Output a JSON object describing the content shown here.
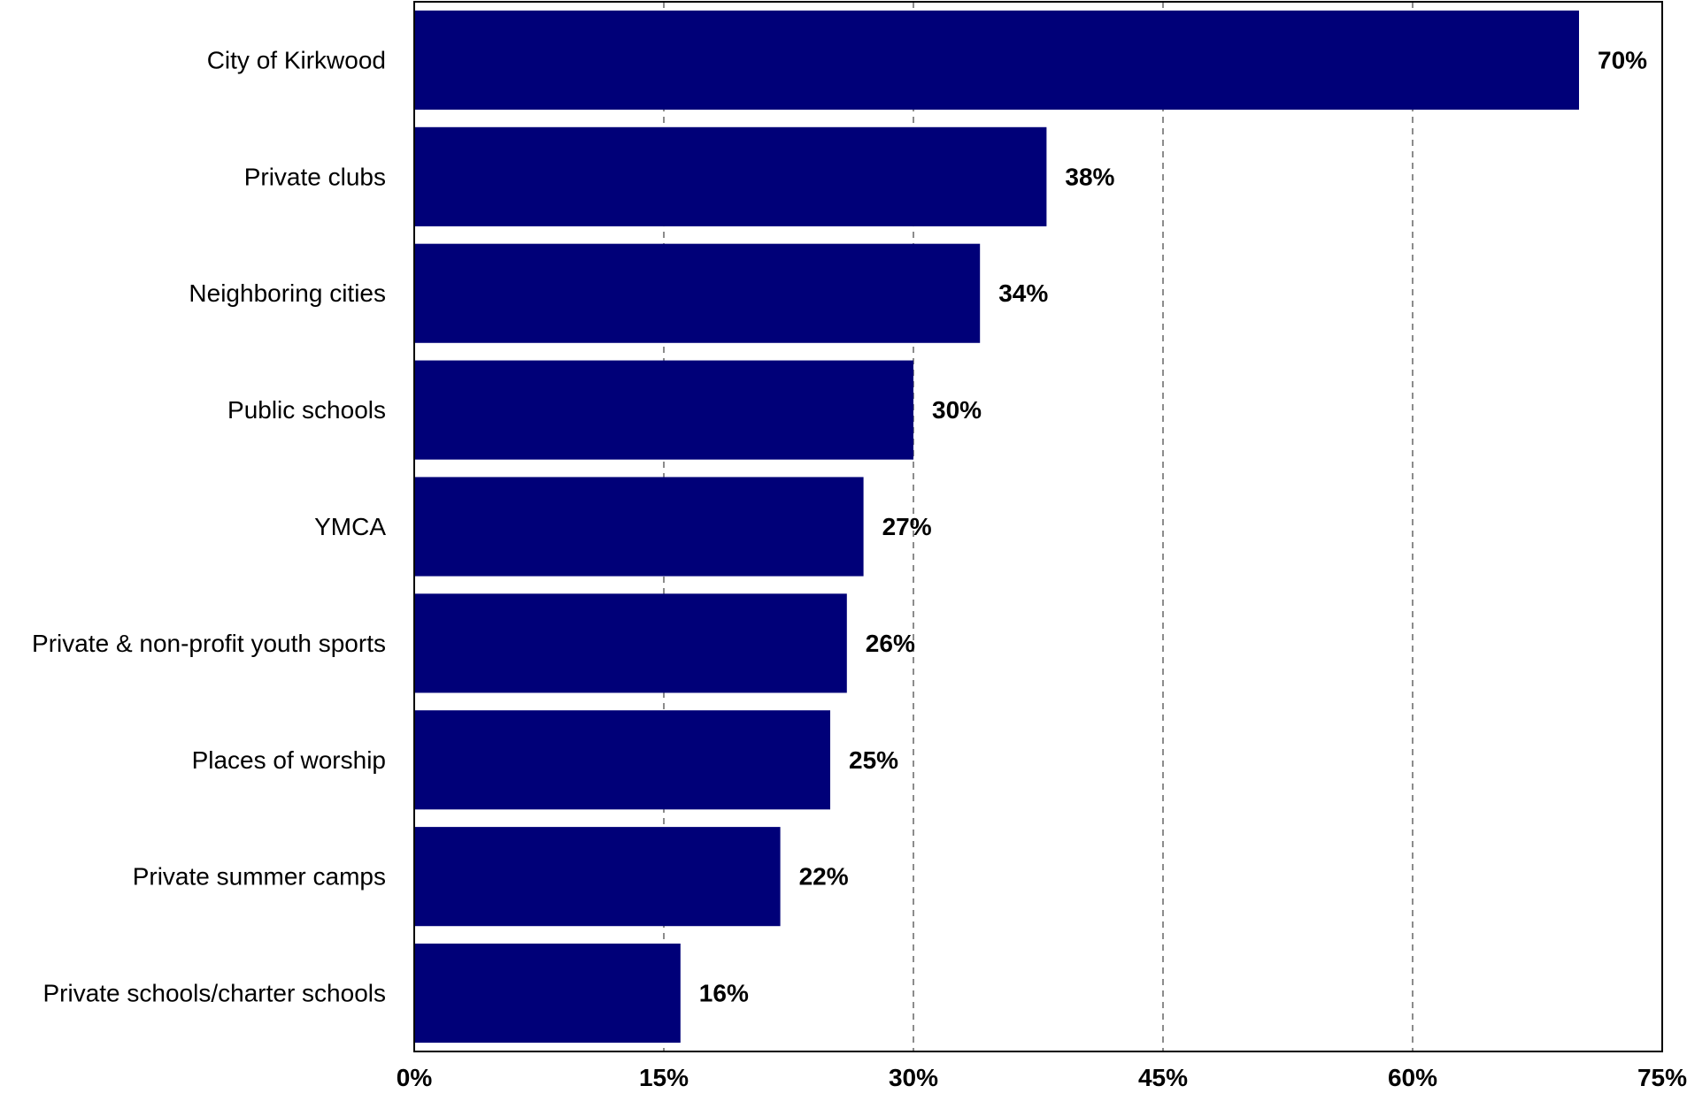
{
  "chart_data": {
    "type": "bar",
    "orientation": "horizontal",
    "title": "",
    "xlabel": "",
    "ylabel": "",
    "categories": [
      "City of Kirkwood",
      "Private clubs",
      "Neighboring cities",
      "Public schools",
      "YMCA",
      "Private & non-profit youth sports",
      "Places of worship",
      "Private summer camps",
      "Private schools/charter schools"
    ],
    "values": [
      70,
      38,
      34,
      30,
      27,
      26,
      25,
      22,
      16
    ],
    "value_labels": [
      "70%",
      "38%",
      "34%",
      "30%",
      "27%",
      "26%",
      "25%",
      "22%",
      "16%"
    ],
    "xlim": [
      0,
      75
    ],
    "xticks": [
      0,
      15,
      30,
      45,
      60,
      75
    ],
    "xtick_labels": [
      "0%",
      "15%",
      "30%",
      "45%",
      "60%",
      "75%"
    ],
    "grid": "vertical dashed",
    "legend": "none",
    "bar_color": "#000078"
  }
}
